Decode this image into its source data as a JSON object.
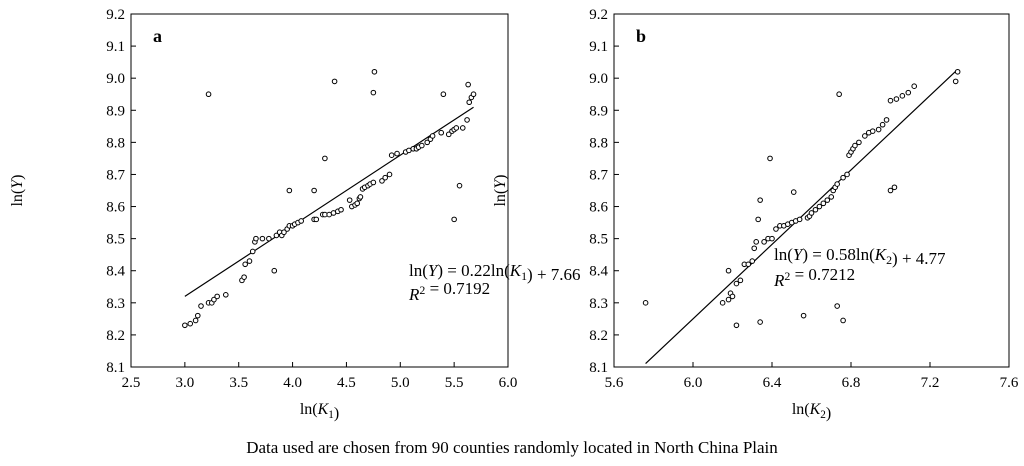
{
  "caption": "Data used are chosen from 90 counties randomly located in North China Plain",
  "chart_data": [
    {
      "type": "scatter",
      "panel": "a",
      "xlabel": "ln(K₁)",
      "ylabel": "ln(Y)",
      "xlim": [
        2.5,
        6.0
      ],
      "ylim": [
        8.1,
        9.2
      ],
      "xticks": [
        "2.5",
        "3.0",
        "3.5",
        "4.0",
        "4.5",
        "5.0",
        "5.5",
        "6.0"
      ],
      "yticks": [
        "8.1",
        "8.2",
        "8.3",
        "8.4",
        "8.5",
        "8.6",
        "8.7",
        "8.8",
        "8.9",
        "9.0",
        "9.1",
        "9.2"
      ],
      "fit": {
        "slope": 0.22,
        "intercept": 7.66,
        "x": [
          3.0,
          5.68
        ]
      },
      "equation": "ln(Y) = 0.22ln(K₁) + 7.66",
      "r2": "R² = 0.7192",
      "points": [
        [
          3.0,
          8.23
        ],
        [
          3.05,
          8.235
        ],
        [
          3.1,
          8.245
        ],
        [
          3.12,
          8.26
        ],
        [
          3.15,
          8.29
        ],
        [
          3.22,
          8.3
        ],
        [
          3.25,
          8.3
        ],
        [
          3.27,
          8.31
        ],
        [
          3.3,
          8.32
        ],
        [
          3.38,
          8.325
        ],
        [
          3.22,
          8.95
        ],
        [
          3.53,
          8.37
        ],
        [
          3.55,
          8.38
        ],
        [
          3.56,
          8.42
        ],
        [
          3.6,
          8.43
        ],
        [
          3.63,
          8.46
        ],
        [
          3.65,
          8.49
        ],
        [
          3.66,
          8.5
        ],
        [
          3.72,
          8.5
        ],
        [
          3.78,
          8.5
        ],
        [
          3.83,
          8.4
        ],
        [
          3.85,
          8.51
        ],
        [
          3.88,
          8.52
        ],
        [
          3.9,
          8.51
        ],
        [
          3.92,
          8.52
        ],
        [
          3.95,
          8.53
        ],
        [
          3.97,
          8.54
        ],
        [
          3.97,
          8.65
        ],
        [
          4.0,
          8.54
        ],
        [
          4.02,
          8.545
        ],
        [
          4.05,
          8.55
        ],
        [
          4.08,
          8.555
        ],
        [
          4.2,
          8.56
        ],
        [
          4.2,
          8.65
        ],
        [
          4.22,
          8.56
        ],
        [
          4.28,
          8.575
        ],
        [
          4.3,
          8.575
        ],
        [
          4.3,
          8.75
        ],
        [
          4.34,
          8.575
        ],
        [
          4.38,
          8.58
        ],
        [
          4.39,
          8.99
        ],
        [
          4.42,
          8.585
        ],
        [
          4.45,
          8.59
        ],
        [
          4.53,
          8.62
        ],
        [
          4.55,
          8.6
        ],
        [
          4.58,
          8.605
        ],
        [
          4.6,
          8.61
        ],
        [
          4.62,
          8.625
        ],
        [
          4.63,
          8.63
        ],
        [
          4.65,
          8.655
        ],
        [
          4.67,
          8.66
        ],
        [
          4.7,
          8.665
        ],
        [
          4.72,
          8.67
        ],
        [
          4.75,
          8.955
        ],
        [
          4.76,
          9.02
        ],
        [
          4.75,
          8.675
        ],
        [
          4.83,
          8.68
        ],
        [
          4.86,
          8.69
        ],
        [
          4.9,
          8.7
        ],
        [
          4.92,
          8.76
        ],
        [
          4.97,
          8.765
        ],
        [
          5.05,
          8.77
        ],
        [
          5.08,
          8.775
        ],
        [
          5.12,
          8.78
        ],
        [
          5.15,
          8.78
        ],
        [
          5.17,
          8.785
        ],
        [
          5.2,
          8.79
        ],
        [
          5.25,
          8.8
        ],
        [
          5.28,
          8.81
        ],
        [
          5.3,
          8.82
        ],
        [
          5.38,
          8.83
        ],
        [
          5.4,
          8.95
        ],
        [
          5.45,
          8.825
        ],
        [
          5.48,
          8.835
        ],
        [
          5.5,
          8.84
        ],
        [
          5.52,
          8.845
        ],
        [
          5.5,
          8.56
        ],
        [
          5.55,
          8.665
        ],
        [
          5.58,
          8.845
        ],
        [
          5.62,
          8.87
        ],
        [
          5.63,
          8.98
        ],
        [
          5.64,
          8.925
        ],
        [
          5.66,
          8.94
        ],
        [
          5.68,
          8.95
        ]
      ]
    },
    {
      "type": "scatter",
      "panel": "b",
      "xlabel": "ln(K₂)",
      "ylabel": "ln(Y)",
      "xlim": [
        5.6,
        7.6
      ],
      "ylim": [
        8.1,
        9.2
      ],
      "xticks": [
        "5.6",
        "6.0",
        "6.4",
        "6.8",
        "7.2",
        "7.6"
      ],
      "yticks": [
        "8.1",
        "8.2",
        "8.3",
        "8.4",
        "8.5",
        "8.6",
        "8.7",
        "8.8",
        "8.9",
        "9.0",
        "9.1",
        "9.2"
      ],
      "fit": {
        "slope": 0.58,
        "intercept": 4.77,
        "x": [
          5.76,
          7.33
        ]
      },
      "equation": "ln(Y) = 0.58ln(K₂) + 4.77",
      "r2": "R² = 0.7212",
      "points": [
        [
          5.76,
          8.3
        ],
        [
          6.15,
          8.3
        ],
        [
          6.18,
          8.31
        ],
        [
          6.19,
          8.33
        ],
        [
          6.18,
          8.4
        ],
        [
          6.2,
          8.32
        ],
        [
          6.22,
          8.23
        ],
        [
          6.22,
          8.36
        ],
        [
          6.24,
          8.37
        ],
        [
          6.26,
          8.42
        ],
        [
          6.28,
          8.42
        ],
        [
          6.3,
          8.43
        ],
        [
          6.31,
          8.47
        ],
        [
          6.32,
          8.49
        ],
        [
          6.34,
          8.24
        ],
        [
          6.33,
          8.56
        ],
        [
          6.34,
          8.62
        ],
        [
          6.36,
          8.49
        ],
        [
          6.38,
          8.5
        ],
        [
          6.39,
          8.75
        ],
        [
          6.4,
          8.5
        ],
        [
          6.42,
          8.53
        ],
        [
          6.44,
          8.54
        ],
        [
          6.46,
          8.54
        ],
        [
          6.48,
          8.545
        ],
        [
          6.5,
          8.55
        ],
        [
          6.51,
          8.645
        ],
        [
          6.52,
          8.555
        ],
        [
          6.54,
          8.56
        ],
        [
          6.56,
          8.26
        ],
        [
          6.58,
          8.565
        ],
        [
          6.59,
          8.57
        ],
        [
          6.6,
          8.58
        ],
        [
          6.62,
          8.59
        ],
        [
          6.64,
          8.6
        ],
        [
          6.66,
          8.61
        ],
        [
          6.68,
          8.62
        ],
        [
          6.7,
          8.63
        ],
        [
          6.71,
          8.65
        ],
        [
          6.72,
          8.66
        ],
        [
          6.73,
          8.67
        ],
        [
          6.73,
          8.29
        ],
        [
          6.74,
          8.95
        ],
        [
          6.76,
          8.245
        ],
        [
          6.76,
          8.69
        ],
        [
          6.78,
          8.7
        ],
        [
          6.79,
          8.76
        ],
        [
          6.8,
          8.77
        ],
        [
          6.81,
          8.78
        ],
        [
          6.82,
          8.79
        ],
        [
          6.84,
          8.8
        ],
        [
          6.87,
          8.82
        ],
        [
          6.89,
          8.83
        ],
        [
          6.91,
          8.835
        ],
        [
          6.94,
          8.84
        ],
        [
          6.96,
          8.855
        ],
        [
          6.98,
          8.87
        ],
        [
          7.0,
          8.65
        ],
        [
          7.0,
          8.93
        ],
        [
          7.02,
          8.66
        ],
        [
          7.03,
          8.935
        ],
        [
          7.06,
          8.945
        ],
        [
          7.09,
          8.955
        ],
        [
          7.12,
          8.975
        ],
        [
          7.33,
          8.99
        ],
        [
          7.34,
          9.02
        ]
      ]
    }
  ]
}
